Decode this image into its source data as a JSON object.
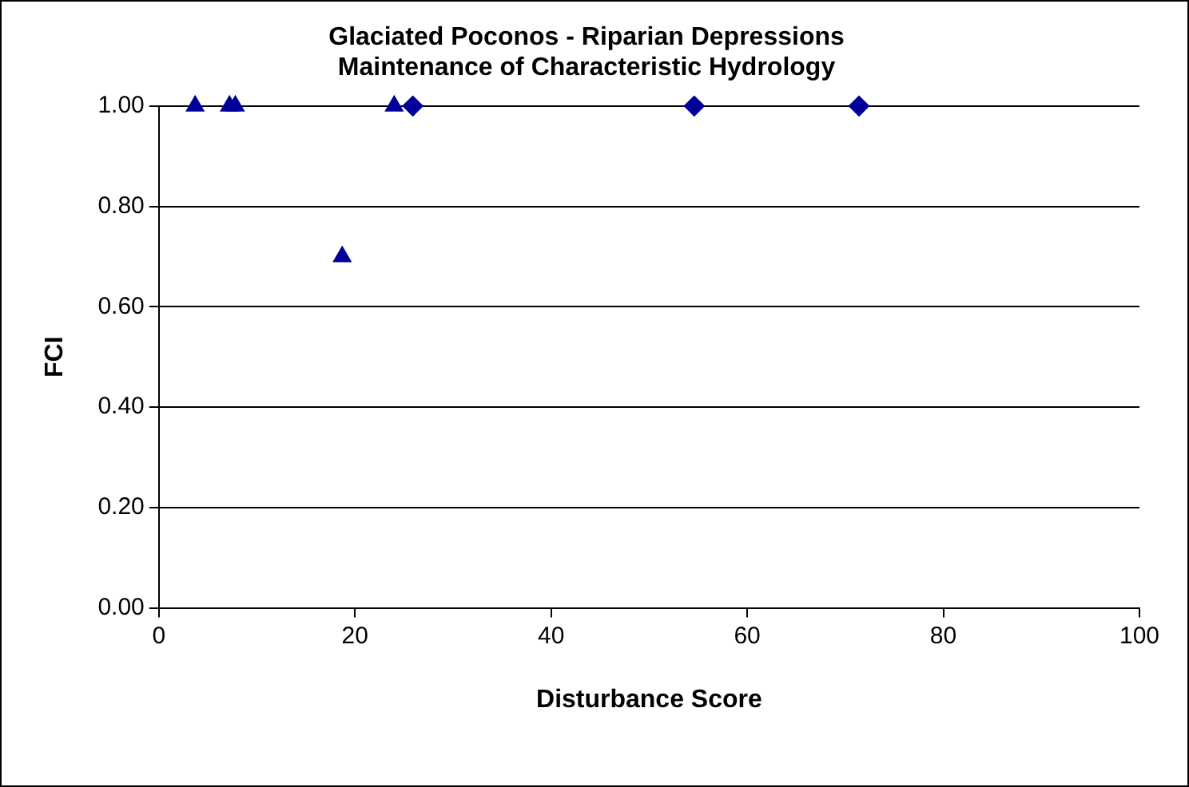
{
  "chart_data": {
    "type": "scatter",
    "title": "Glaciated Poconos - Riparian Depressions\nMaintenance of Characteristic Hydrology",
    "xlabel": "Disturbance Score",
    "ylabel": "FCI",
    "series": [
      {
        "marker": "triangle",
        "color": "#000099",
        "x": [
          3.7,
          7.2,
          7.8,
          18.7,
          24.0
        ],
        "values": [
          1.0,
          1.0,
          1.0,
          0.7,
          1.0
        ]
      },
      {
        "marker": "diamond",
        "color": "#000099",
        "x": [
          25.9,
          54.6,
          71.4
        ],
        "values": [
          1.0,
          1.0,
          1.0
        ]
      }
    ],
    "xlim": [
      0,
      100
    ],
    "xticks": [
      0,
      20,
      40,
      60,
      80,
      100
    ],
    "ylim": [
      0,
      1
    ],
    "yticks": [
      {
        "value": 0,
        "label": "0.00"
      },
      {
        "value": 0.2,
        "label": "0.20"
      },
      {
        "value": 0.4,
        "label": "0.40"
      },
      {
        "value": 0.6,
        "label": "0.60"
      },
      {
        "value": 0.8,
        "label": "0.80"
      },
      {
        "value": 1,
        "label": "1.00"
      }
    ],
    "grid": "y",
    "legend": false
  }
}
